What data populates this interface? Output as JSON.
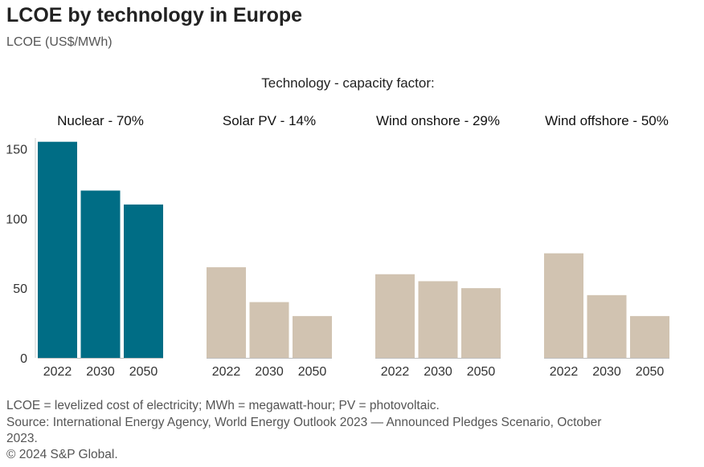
{
  "title": "LCOE by technology in Europe",
  "subtitle": "LCOE (US$/MWh)",
  "chart_data": {
    "type": "bar",
    "legend_title": "Technology - capacity factor:",
    "ylabel": "",
    "ylim": [
      0,
      160
    ],
    "yticks": [
      0,
      50,
      100,
      150
    ],
    "categories": [
      "2022",
      "2030",
      "2050"
    ],
    "groups": [
      {
        "name": "Nuclear - 70%",
        "values": [
          155,
          120,
          110
        ],
        "color": "#006d85"
      },
      {
        "name": "Solar PV - 14%",
        "values": [
          65,
          40,
          30
        ],
        "color": "#d1c3b1"
      },
      {
        "name": "Wind onshore - 29%",
        "values": [
          60,
          55,
          50
        ],
        "color": "#d1c3b1"
      },
      {
        "name": "Wind offshore - 50%",
        "values": [
          75,
          45,
          30
        ],
        "color": "#d1c3b1"
      }
    ]
  },
  "footnotes": {
    "line1": "LCOE = levelized cost of electricity; MWh = megawatt-hour; PV = photovoltaic.",
    "line2": "Source: International Energy Agency, World Energy Outlook 2023 — Announced Pledges Scenario, October",
    "line3": "2023.",
    "line4": "© 2024 S&P Global."
  }
}
